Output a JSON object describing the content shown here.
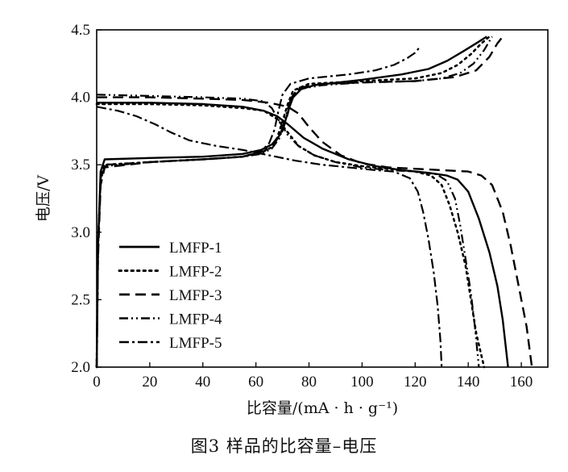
{
  "caption": "图3    样品的比容量–电压",
  "chart_data": {
    "type": "line",
    "title": "",
    "xlabel": "比容量/(mA · h · g⁻¹)",
    "ylabel": "电压/V",
    "xlim": [
      0,
      170
    ],
    "ylim": [
      2.0,
      4.5
    ],
    "xticks": [
      "0",
      "20",
      "40",
      "60",
      "80",
      "100",
      "120",
      "140",
      "160"
    ],
    "yticks": [
      "2.0",
      "2.5",
      "3.0",
      "3.5",
      "4.0",
      "4.5"
    ],
    "grid": false,
    "legend_position": "bottom-left",
    "series": [
      {
        "name": "LMFP-1",
        "style": "solid",
        "color": "#000000",
        "charge": [
          [
            0,
            2.0
          ],
          [
            0.5,
            2.9
          ],
          [
            1.5,
            3.45
          ],
          [
            3,
            3.54
          ],
          [
            20,
            3.55
          ],
          [
            40,
            3.56
          ],
          [
            55,
            3.58
          ],
          [
            62,
            3.61
          ],
          [
            66,
            3.65
          ],
          [
            69,
            3.72
          ],
          [
            71,
            3.82
          ],
          [
            72.5,
            3.92
          ],
          [
            74,
            4.0
          ],
          [
            77,
            4.06
          ],
          [
            82,
            4.09
          ],
          [
            100,
            4.13
          ],
          [
            115,
            4.17
          ],
          [
            125,
            4.21
          ],
          [
            132,
            4.27
          ],
          [
            138,
            4.34
          ],
          [
            143,
            4.4
          ],
          [
            147,
            4.45
          ]
        ],
        "discharge": [
          [
            0,
            3.96
          ],
          [
            20,
            3.96
          ],
          [
            40,
            3.95
          ],
          [
            55,
            3.93
          ],
          [
            63,
            3.9
          ],
          [
            68,
            3.86
          ],
          [
            72,
            3.8
          ],
          [
            78,
            3.7
          ],
          [
            85,
            3.62
          ],
          [
            95,
            3.54
          ],
          [
            105,
            3.49
          ],
          [
            115,
            3.46
          ],
          [
            125,
            3.44
          ],
          [
            132,
            3.42
          ],
          [
            136,
            3.39
          ],
          [
            140,
            3.3
          ],
          [
            144,
            3.1
          ],
          [
            148,
            2.85
          ],
          [
            151,
            2.6
          ],
          [
            153,
            2.35
          ],
          [
            155,
            2.0
          ]
        ]
      },
      {
        "name": "LMFP-2",
        "style": "dotted",
        "color": "#000000",
        "charge": [
          [
            0,
            2.0
          ],
          [
            0.5,
            2.9
          ],
          [
            1.5,
            3.4
          ],
          [
            3,
            3.5
          ],
          [
            20,
            3.52
          ],
          [
            40,
            3.54
          ],
          [
            55,
            3.56
          ],
          [
            62,
            3.59
          ],
          [
            66,
            3.63
          ],
          [
            68,
            3.7
          ],
          [
            70,
            3.82
          ],
          [
            72,
            3.95
          ],
          [
            74,
            4.05
          ],
          [
            80,
            4.1
          ],
          [
            100,
            4.12
          ],
          [
            120,
            4.14
          ],
          [
            130,
            4.18
          ],
          [
            136,
            4.24
          ],
          [
            141,
            4.32
          ],
          [
            145,
            4.4
          ],
          [
            148,
            4.45
          ]
        ],
        "discharge": [
          [
            0,
            3.95
          ],
          [
            20,
            3.95
          ],
          [
            40,
            3.94
          ],
          [
            55,
            3.92
          ],
          [
            63,
            3.9
          ],
          [
            68,
            3.84
          ],
          [
            72,
            3.74
          ],
          [
            76,
            3.64
          ],
          [
            82,
            3.57
          ],
          [
            90,
            3.52
          ],
          [
            100,
            3.49
          ],
          [
            110,
            3.47
          ],
          [
            120,
            3.45
          ],
          [
            126,
            3.42
          ],
          [
            130,
            3.35
          ],
          [
            133,
            3.2
          ],
          [
            136,
            3.0
          ],
          [
            139,
            2.75
          ],
          [
            141,
            2.5
          ],
          [
            143,
            2.25
          ],
          [
            146,
            2.0
          ]
        ]
      },
      {
        "name": "LMFP-3",
        "style": "dashed",
        "color": "#000000",
        "charge": [
          [
            0,
            2.0
          ],
          [
            0.5,
            2.8
          ],
          [
            1.5,
            3.35
          ],
          [
            3,
            3.48
          ],
          [
            20,
            3.52
          ],
          [
            40,
            3.54
          ],
          [
            55,
            3.56
          ],
          [
            63,
            3.6
          ],
          [
            67,
            3.66
          ],
          [
            70,
            3.75
          ],
          [
            72,
            3.88
          ],
          [
            73.5,
            4.0
          ],
          [
            76,
            4.07
          ],
          [
            85,
            4.1
          ],
          [
            100,
            4.11
          ],
          [
            120,
            4.12
          ],
          [
            135,
            4.15
          ],
          [
            143,
            4.2
          ],
          [
            148,
            4.3
          ],
          [
            151,
            4.4
          ],
          [
            153,
            4.45
          ]
        ],
        "discharge": [
          [
            0,
            4.0
          ],
          [
            20,
            4.0
          ],
          [
            40,
            3.99
          ],
          [
            55,
            3.98
          ],
          [
            65,
            3.96
          ],
          [
            72,
            3.93
          ],
          [
            76,
            3.88
          ],
          [
            80,
            3.78
          ],
          [
            85,
            3.67
          ],
          [
            92,
            3.57
          ],
          [
            100,
            3.51
          ],
          [
            110,
            3.48
          ],
          [
            120,
            3.47
          ],
          [
            130,
            3.46
          ],
          [
            140,
            3.45
          ],
          [
            145,
            3.42
          ],
          [
            149,
            3.35
          ],
          [
            153,
            3.15
          ],
          [
            156,
            2.9
          ],
          [
            159,
            2.6
          ],
          [
            162,
            2.3
          ],
          [
            164,
            2.0
          ]
        ]
      },
      {
        "name": "LMFP-4",
        "style": "dash-dot-dot",
        "color": "#000000",
        "charge": [
          [
            0,
            2.0
          ],
          [
            0.5,
            2.85
          ],
          [
            1.5,
            3.38
          ],
          [
            3,
            3.49
          ],
          [
            20,
            3.52
          ],
          [
            40,
            3.54
          ],
          [
            55,
            3.56
          ],
          [
            62,
            3.58
          ],
          [
            66,
            3.62
          ],
          [
            69,
            3.7
          ],
          [
            71,
            3.85
          ],
          [
            73,
            3.98
          ],
          [
            76,
            4.06
          ],
          [
            85,
            4.09
          ],
          [
            100,
            4.11
          ],
          [
            120,
            4.12
          ],
          [
            130,
            4.14
          ],
          [
            137,
            4.18
          ],
          [
            142,
            4.25
          ],
          [
            146,
            4.35
          ],
          [
            149,
            4.45
          ]
        ],
        "discharge": [
          [
            0,
            4.02
          ],
          [
            20,
            4.01
          ],
          [
            40,
            4.0
          ],
          [
            55,
            3.99
          ],
          [
            63,
            3.97
          ],
          [
            66,
            3.92
          ],
          [
            68,
            3.85
          ],
          [
            72,
            3.72
          ],
          [
            76,
            3.64
          ],
          [
            82,
            3.57
          ],
          [
            90,
            3.52
          ],
          [
            100,
            3.48
          ],
          [
            110,
            3.46
          ],
          [
            120,
            3.45
          ],
          [
            128,
            3.43
          ],
          [
            132,
            3.38
          ],
          [
            135,
            3.25
          ],
          [
            137,
            3.05
          ],
          [
            139,
            2.8
          ],
          [
            141,
            2.55
          ],
          [
            142.5,
            2.3
          ],
          [
            144,
            2.0
          ]
        ]
      },
      {
        "name": "LMFP-5",
        "style": "dash-dot",
        "color": "#000000",
        "charge": [
          [
            0,
            2.0
          ],
          [
            0.5,
            2.9
          ],
          [
            1.5,
            3.4
          ],
          [
            3,
            3.5
          ],
          [
            20,
            3.52
          ],
          [
            40,
            3.54
          ],
          [
            55,
            3.56
          ],
          [
            62,
            3.6
          ],
          [
            65,
            3.66
          ],
          [
            67,
            3.76
          ],
          [
            68.5,
            3.9
          ],
          [
            70,
            4.02
          ],
          [
            73,
            4.1
          ],
          [
            80,
            4.14
          ],
          [
            95,
            4.17
          ],
          [
            105,
            4.2
          ],
          [
            112,
            4.24
          ],
          [
            117,
            4.29
          ],
          [
            120,
            4.33
          ],
          [
            122,
            4.38
          ]
        ],
        "discharge": [
          [
            0,
            3.93
          ],
          [
            8,
            3.9
          ],
          [
            15,
            3.86
          ],
          [
            22,
            3.8
          ],
          [
            28,
            3.74
          ],
          [
            35,
            3.68
          ],
          [
            45,
            3.64
          ],
          [
            55,
            3.61
          ],
          [
            65,
            3.57
          ],
          [
            75,
            3.53
          ],
          [
            85,
            3.5
          ],
          [
            95,
            3.48
          ],
          [
            105,
            3.46
          ],
          [
            112,
            3.45
          ],
          [
            118,
            3.4
          ],
          [
            121,
            3.3
          ],
          [
            123,
            3.15
          ],
          [
            125,
            2.95
          ],
          [
            127,
            2.7
          ],
          [
            128.5,
            2.45
          ],
          [
            129.5,
            2.2
          ],
          [
            130,
            2.0
          ]
        ]
      }
    ]
  }
}
